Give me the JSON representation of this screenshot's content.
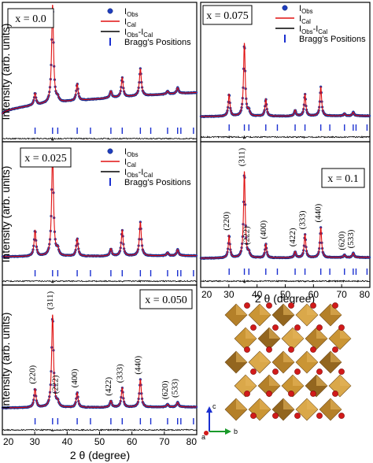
{
  "figure": {
    "ylabel": "Intensity (arb. units)",
    "xlabel": "2 θ (degree)",
    "colors": {
      "obs": "#1f3fbf",
      "obs_edge": "#0a1a66",
      "cal": "#e01010",
      "diff": "#000000",
      "bragg": "#1a2fd0",
      "frame": "#000000"
    }
  },
  "legend": {
    "obs": {
      "main": "I",
      "sub": "Obs"
    },
    "cal": {
      "main": "I",
      "sub": "Cal"
    },
    "diff": {
      "main1": "I",
      "sub1": "Obs",
      "mid": "-I",
      "sub2": "Cal"
    },
    "bragg": "Bragg's Positions"
  },
  "chart_data": [
    {
      "type": "line",
      "label": "x = 0.0",
      "panel": "top-left",
      "xlim": [
        20,
        80
      ],
      "show_x_ticks": false,
      "show_legend": true,
      "show_hkl": false,
      "background": "curved",
      "peaks": [
        {
          "x": 30.1,
          "y": 0.12
        },
        {
          "x": 35.5,
          "y": 1.0
        },
        {
          "x": 37.1,
          "y": 0.04
        },
        {
          "x": 43.1,
          "y": 0.17
        },
        {
          "x": 53.5,
          "y": 0.07
        },
        {
          "x": 57.0,
          "y": 0.2
        },
        {
          "x": 62.6,
          "y": 0.28
        },
        {
          "x": 71.0,
          "y": 0.03
        },
        {
          "x": 74.1,
          "y": 0.06
        }
      ]
    },
    {
      "type": "line",
      "label": "x = 0.075",
      "panel": "top-right",
      "xlim": [
        20,
        80
      ],
      "show_x_ticks": false,
      "show_legend": true,
      "show_hkl": false,
      "background": "flat",
      "peaks": [
        {
          "x": 30.1,
          "y": 0.3
        },
        {
          "x": 35.5,
          "y": 1.0
        },
        {
          "x": 37.1,
          "y": 0.07
        },
        {
          "x": 43.1,
          "y": 0.23
        },
        {
          "x": 53.5,
          "y": 0.08
        },
        {
          "x": 57.0,
          "y": 0.3
        },
        {
          "x": 62.6,
          "y": 0.4
        },
        {
          "x": 71.0,
          "y": 0.03
        },
        {
          "x": 74.1,
          "y": 0.05
        }
      ]
    },
    {
      "type": "line",
      "label": "x = 0.025",
      "panel": "middle-left",
      "xlim": [
        20,
        80
      ],
      "show_x_ticks": false,
      "show_legend": true,
      "show_hkl": false,
      "background": "flat",
      "peaks": [
        {
          "x": 30.1,
          "y": 0.25
        },
        {
          "x": 35.5,
          "y": 1.0
        },
        {
          "x": 37.1,
          "y": 0.06
        },
        {
          "x": 43.1,
          "y": 0.17
        },
        {
          "x": 53.5,
          "y": 0.07
        },
        {
          "x": 57.0,
          "y": 0.25
        },
        {
          "x": 62.6,
          "y": 0.33
        },
        {
          "x": 71.0,
          "y": 0.03
        },
        {
          "x": 74.1,
          "y": 0.06
        }
      ]
    },
    {
      "type": "line",
      "label": "x = 0.1",
      "panel": "middle-right",
      "xlim": [
        20,
        80
      ],
      "xticks": [
        20,
        30,
        40,
        50,
        60,
        70,
        80
      ],
      "show_x_ticks": true,
      "show_legend": false,
      "show_hkl": true,
      "background": "flat",
      "peaks": [
        {
          "x": 30.1,
          "y": 0.26,
          "hkl": "(220)"
        },
        {
          "x": 35.5,
          "y": 1.0,
          "hkl": "(311)"
        },
        {
          "x": 37.1,
          "y": 0.05,
          "hkl": "(222)"
        },
        {
          "x": 43.1,
          "y": 0.16,
          "hkl": "(400)"
        },
        {
          "x": 53.5,
          "y": 0.07,
          "hkl": "(422)"
        },
        {
          "x": 57.0,
          "y": 0.27,
          "hkl": "(333)"
        },
        {
          "x": 62.6,
          "y": 0.35,
          "hkl": "(440)"
        },
        {
          "x": 71.0,
          "y": 0.03,
          "hkl": "(620)"
        },
        {
          "x": 74.1,
          "y": 0.05,
          "hkl": "(533)"
        }
      ]
    },
    {
      "type": "line",
      "label": "x = 0.050",
      "panel": "bottom-left",
      "xlim": [
        20,
        80
      ],
      "xticks": [
        20,
        30,
        40,
        50,
        60,
        70,
        80
      ],
      "show_x_ticks": true,
      "show_legend": false,
      "show_hkl": true,
      "background": "flat",
      "peaks": [
        {
          "x": 30.1,
          "y": 0.2,
          "hkl": "(220)"
        },
        {
          "x": 35.5,
          "y": 1.0,
          "hkl": "(311)"
        },
        {
          "x": 37.1,
          "y": 0.05,
          "hkl": "(222)"
        },
        {
          "x": 43.1,
          "y": 0.16,
          "hkl": "(400)"
        },
        {
          "x": 53.5,
          "y": 0.07,
          "hkl": "(422)"
        },
        {
          "x": 57.0,
          "y": 0.21,
          "hkl": "(333)"
        },
        {
          "x": 62.6,
          "y": 0.3,
          "hkl": "(440)"
        },
        {
          "x": 71.0,
          "y": 0.03,
          "hkl": "(620)"
        },
        {
          "x": 74.1,
          "y": 0.05,
          "hkl": "(533)"
        }
      ]
    }
  ],
  "bragg_positions": [
    30.1,
    35.5,
    37.1,
    43.1,
    47.2,
    53.5,
    57.0,
    62.6,
    65.8,
    71.0,
    74.1,
    75.1,
    79.0
  ],
  "structure": {
    "axes": {
      "c": "c",
      "a": "a",
      "b": "b"
    }
  }
}
